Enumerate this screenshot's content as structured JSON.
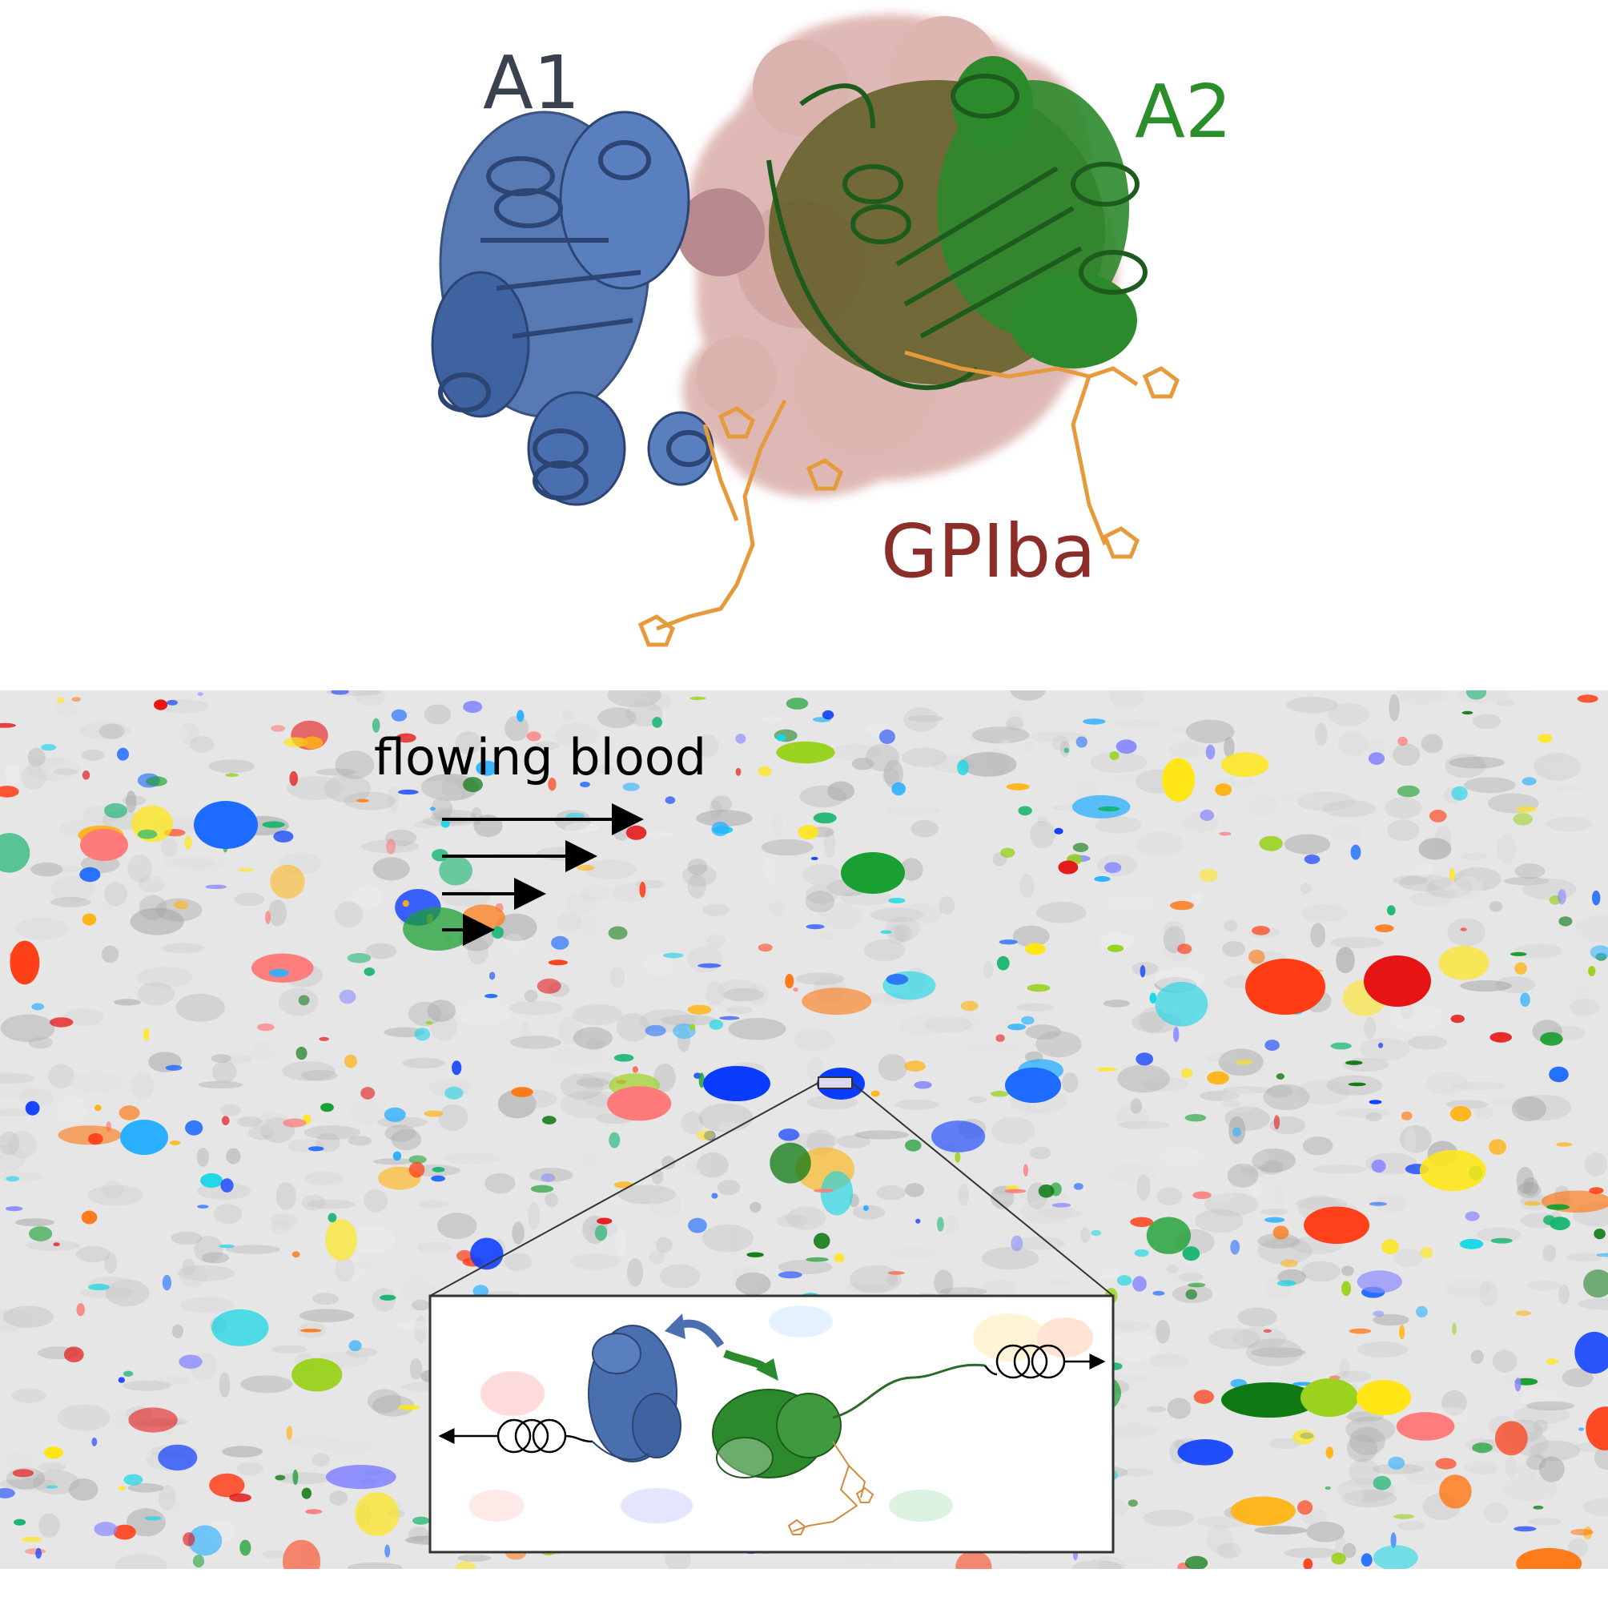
{
  "labels": {
    "a1": "A1",
    "a2": "A2",
    "gpiba": "GPIba",
    "flowing_blood": "flowing blood"
  },
  "colors": {
    "a1": "#3a4250",
    "a2": "#2a8f2a",
    "gpiba": "#8b2e2a",
    "a1_domain": "#4a6fae",
    "a2_domain": "#2c7d2c",
    "glycan": "#e69a3c",
    "surface": "#c98a84",
    "background_speckle": "#e6e6e6"
  }
}
